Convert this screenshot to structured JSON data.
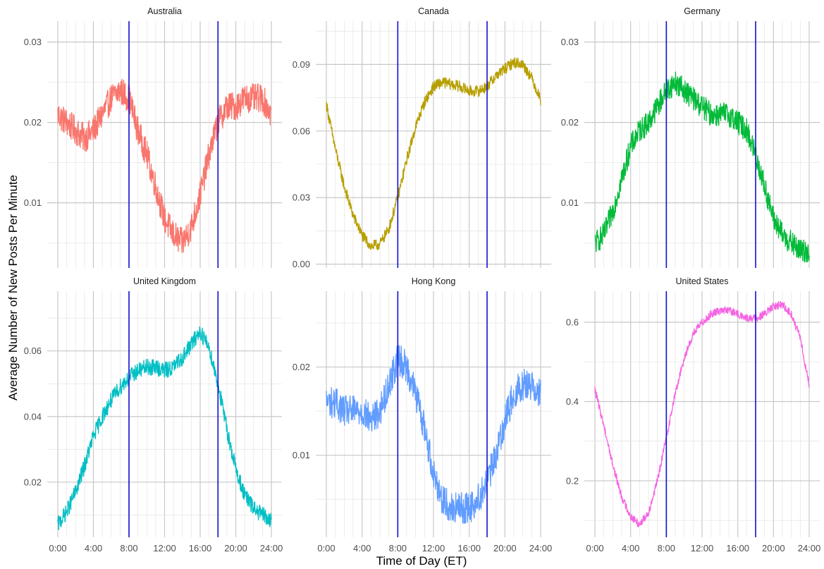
{
  "figure": {
    "xlabel": "Time of Day (ET)",
    "ylabel": "Average Number of New Posts Per Minute"
  },
  "x_ticks": [
    {
      "value": 0,
      "label": "0:00"
    },
    {
      "value": 4,
      "label": "4:00"
    },
    {
      "value": 8,
      "label": "8:00"
    },
    {
      "value": 12,
      "label": "12:00"
    },
    {
      "value": 16,
      "label": "16:00"
    },
    {
      "value": 20,
      "label": "20:00"
    },
    {
      "value": 24,
      "label": "24:00"
    }
  ],
  "chart_data": [
    {
      "type": "line",
      "title": "Australia",
      "color": "#F8766D",
      "xlim": [
        0,
        24
      ],
      "ylim": [
        0.0019,
        0.0326
      ],
      "noise": 0.0018,
      "x": [
        0,
        1,
        2,
        3,
        4,
        5,
        6,
        7,
        8,
        9,
        10,
        11,
        12,
        13,
        14,
        15,
        16,
        17,
        18,
        19,
        20,
        21,
        22,
        23,
        24
      ],
      "y": [
        0.021,
        0.02,
        0.019,
        0.018,
        0.019,
        0.021,
        0.023,
        0.024,
        0.023,
        0.019,
        0.016,
        0.012,
        0.008,
        0.006,
        0.005,
        0.007,
        0.011,
        0.016,
        0.02,
        0.022,
        0.022,
        0.023,
        0.023,
        0.023,
        0.021
      ],
      "yticks": [
        {
          "value": 0.01,
          "label": "0.01"
        },
        {
          "value": 0.02,
          "label": "0.02"
        },
        {
          "value": 0.03,
          "label": "0.03"
        }
      ],
      "vlines": [
        8,
        18
      ],
      "show_x_labels": false,
      "show_y_title": false
    },
    {
      "type": "line",
      "title": "Canada",
      "color": "#B79F00",
      "xlim": [
        0,
        24
      ],
      "ylim": [
        -0.0017,
        0.1095
      ],
      "noise": 0.0025,
      "x": [
        0,
        1,
        2,
        3,
        4,
        5,
        6,
        7,
        8,
        9,
        10,
        11,
        12,
        13,
        14,
        15,
        16,
        17,
        18,
        19,
        20,
        21,
        22,
        23,
        24
      ],
      "y": [
        0.072,
        0.052,
        0.035,
        0.022,
        0.013,
        0.008,
        0.009,
        0.016,
        0.03,
        0.047,
        0.062,
        0.073,
        0.08,
        0.082,
        0.081,
        0.08,
        0.078,
        0.078,
        0.08,
        0.085,
        0.088,
        0.091,
        0.09,
        0.084,
        0.074
      ],
      "yticks": [
        {
          "value": 0.0,
          "label": "0.00"
        },
        {
          "value": 0.03,
          "label": "0.03"
        },
        {
          "value": 0.06,
          "label": "0.06"
        },
        {
          "value": 0.09,
          "label": "0.09"
        }
      ],
      "vlines": [
        8,
        18
      ],
      "show_x_labels": false,
      "show_y_title": false
    },
    {
      "type": "line",
      "title": "Germany",
      "color": "#00BA38",
      "xlim": [
        0,
        24
      ],
      "ylim": [
        0.0019,
        0.0326
      ],
      "noise": 0.0015,
      "x": [
        0,
        1,
        2,
        3,
        4,
        5,
        6,
        7,
        8,
        9,
        10,
        11,
        12,
        13,
        14,
        15,
        16,
        17,
        18,
        19,
        20,
        21,
        22,
        23,
        24
      ],
      "y": [
        0.005,
        0.006,
        0.009,
        0.013,
        0.017,
        0.019,
        0.02,
        0.022,
        0.024,
        0.025,
        0.024,
        0.023,
        0.022,
        0.021,
        0.021,
        0.021,
        0.02,
        0.019,
        0.016,
        0.012,
        0.008,
        0.006,
        0.005,
        0.004,
        0.004
      ],
      "yticks": [
        {
          "value": 0.01,
          "label": "0.01"
        },
        {
          "value": 0.02,
          "label": "0.02"
        },
        {
          "value": 0.03,
          "label": "0.03"
        }
      ],
      "vlines": [
        8,
        18
      ],
      "show_x_labels": false,
      "show_y_title": false
    },
    {
      "type": "line",
      "title": "United Kingdom",
      "color": "#00BFC4",
      "xlim": [
        0,
        24
      ],
      "ylim": [
        0.0032,
        0.0782
      ],
      "noise": 0.0025,
      "x": [
        0,
        1,
        2,
        3,
        4,
        5,
        6,
        7,
        8,
        9,
        10,
        11,
        12,
        13,
        14,
        15,
        16,
        17,
        18,
        19,
        20,
        21,
        22,
        23,
        24
      ],
      "y": [
        0.007,
        0.011,
        0.017,
        0.025,
        0.034,
        0.04,
        0.045,
        0.049,
        0.052,
        0.054,
        0.055,
        0.055,
        0.054,
        0.055,
        0.058,
        0.062,
        0.066,
        0.061,
        0.05,
        0.036,
        0.024,
        0.016,
        0.012,
        0.01,
        0.008
      ],
      "yticks": [
        {
          "value": 0.02,
          "label": "0.02"
        },
        {
          "value": 0.04,
          "label": "0.04"
        },
        {
          "value": 0.06,
          "label": "0.06"
        }
      ],
      "vlines": [
        8,
        18
      ],
      "show_x_labels": true,
      "show_y_title": false
    },
    {
      "type": "line",
      "title": "Hong Kong",
      "color": "#619CFF",
      "xlim": [
        0,
        24
      ],
      "ylim": [
        0.0007,
        0.0286
      ],
      "noise": 0.0018,
      "x": [
        0,
        1,
        2,
        3,
        4,
        5,
        6,
        7,
        8,
        9,
        10,
        11,
        12,
        13,
        14,
        15,
        16,
        17,
        18,
        19,
        20,
        21,
        22,
        23,
        24
      ],
      "y": [
        0.016,
        0.016,
        0.015,
        0.015,
        0.015,
        0.014,
        0.015,
        0.018,
        0.021,
        0.02,
        0.017,
        0.013,
        0.008,
        0.005,
        0.004,
        0.004,
        0.004,
        0.005,
        0.007,
        0.01,
        0.014,
        0.017,
        0.018,
        0.018,
        0.017
      ],
      "yticks": [
        {
          "value": 0.01,
          "label": "0.01"
        },
        {
          "value": 0.02,
          "label": "0.02"
        }
      ],
      "vlines": [
        8,
        18
      ],
      "show_x_labels": true,
      "show_y_title": false
    },
    {
      "type": "line",
      "title": "United States",
      "color": "#F564E3",
      "xlim": [
        0,
        24
      ],
      "ylim": [
        0.0576,
        0.6783
      ],
      "noise": 0.01,
      "x": [
        0,
        1,
        2,
        3,
        4,
        5,
        6,
        7,
        8,
        9,
        10,
        11,
        12,
        13,
        14,
        15,
        16,
        17,
        18,
        19,
        20,
        21,
        22,
        23,
        24
      ],
      "y": [
        0.43,
        0.34,
        0.24,
        0.16,
        0.11,
        0.09,
        0.12,
        0.2,
        0.31,
        0.42,
        0.51,
        0.57,
        0.6,
        0.62,
        0.63,
        0.63,
        0.62,
        0.61,
        0.61,
        0.62,
        0.64,
        0.645,
        0.62,
        0.56,
        0.44
      ],
      "yticks": [
        {
          "value": 0.2,
          "label": "0.2"
        },
        {
          "value": 0.4,
          "label": "0.4"
        },
        {
          "value": 0.6,
          "label": "0.6"
        }
      ],
      "vlines": [
        8,
        18
      ],
      "show_x_labels": true,
      "show_y_title": false
    }
  ],
  "style": {
    "vline_color": "#1010D0",
    "major_grid_color": "#C8C8C8",
    "minor_grid_color": "#E6E6E6",
    "text_color": "#333333"
  }
}
